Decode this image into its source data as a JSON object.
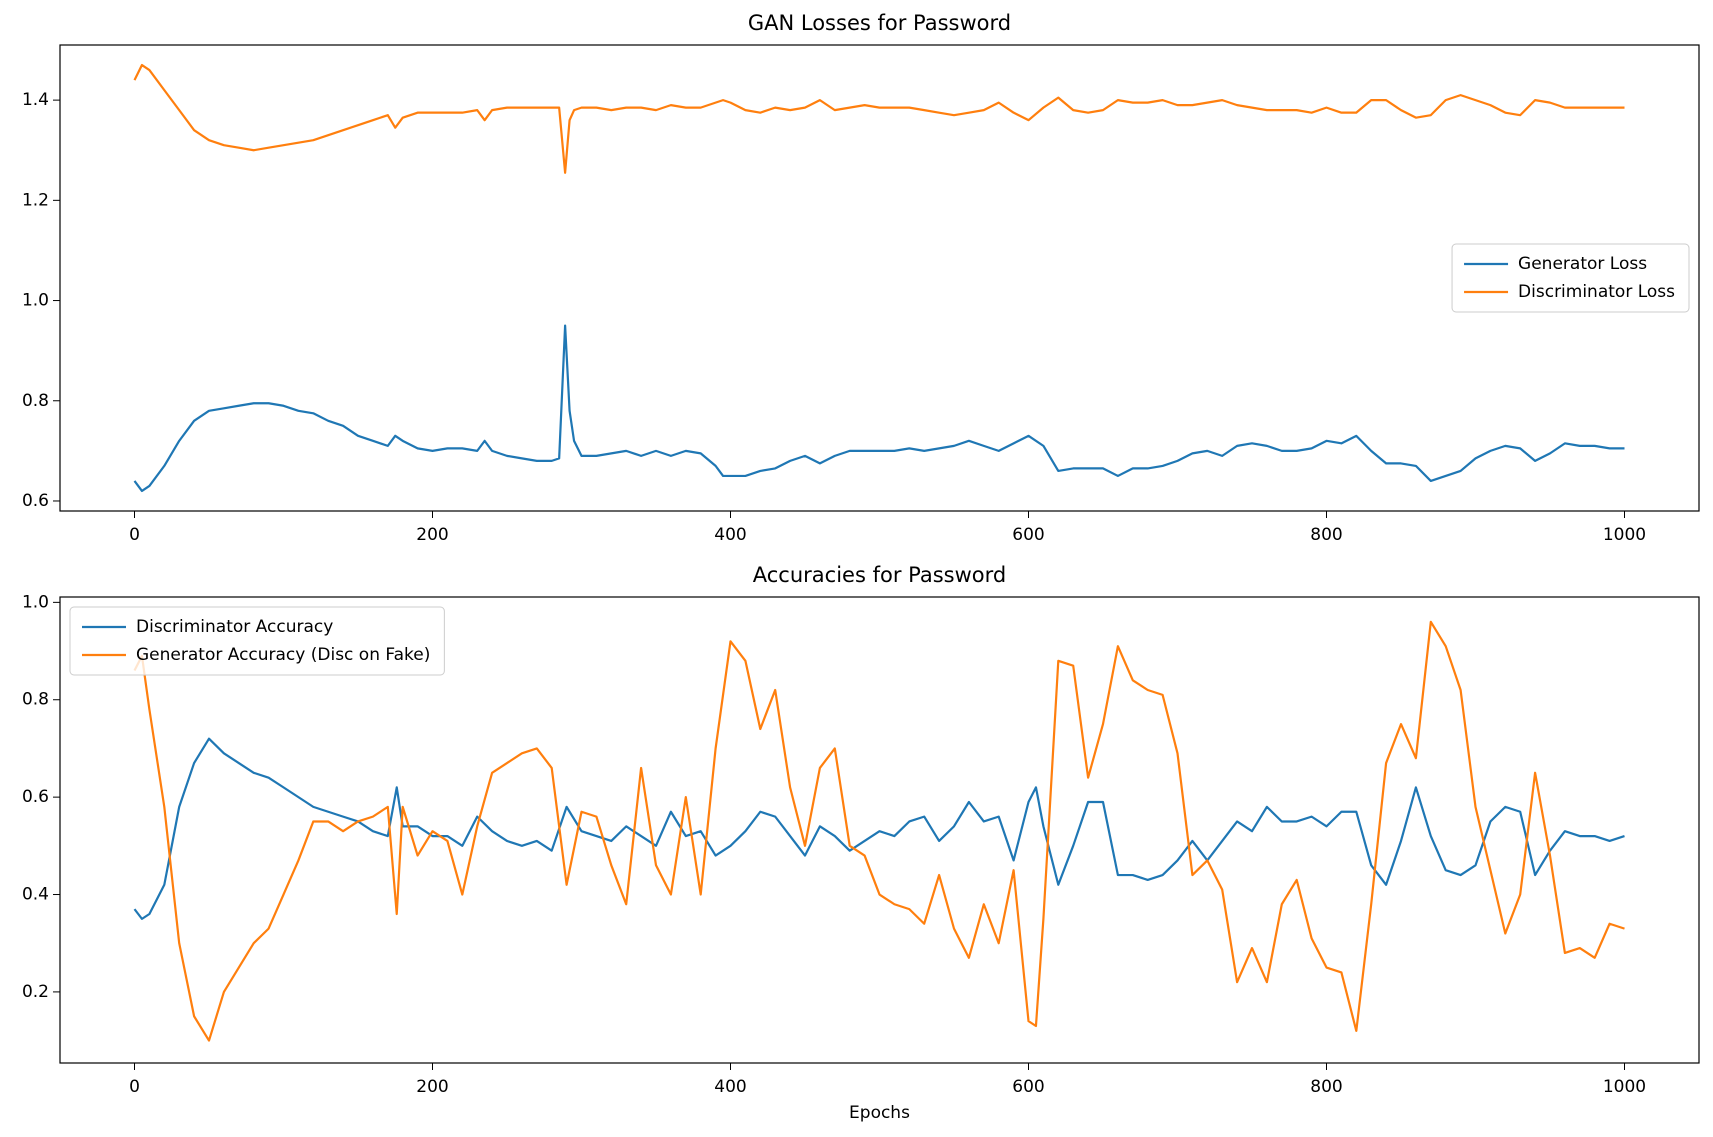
{
  "chart_data": [
    {
      "type": "line",
      "title": "GAN Losses for Password",
      "legend": "center right",
      "x": [
        0,
        5,
        10,
        20,
        30,
        40,
        50,
        60,
        70,
        80,
        90,
        100,
        110,
        120,
        130,
        140,
        150,
        160,
        170,
        175,
        180,
        190,
        200,
        210,
        220,
        230,
        235,
        240,
        250,
        260,
        270,
        280,
        285,
        289,
        292,
        295,
        300,
        310,
        320,
        330,
        340,
        350,
        360,
        370,
        380,
        390,
        395,
        400,
        410,
        420,
        430,
        440,
        450,
        460,
        470,
        480,
        490,
        500,
        510,
        520,
        530,
        540,
        550,
        560,
        570,
        580,
        590,
        600,
        610,
        620,
        630,
        640,
        650,
        660,
        670,
        680,
        690,
        700,
        710,
        720,
        730,
        740,
        750,
        760,
        770,
        780,
        790,
        800,
        810,
        820,
        830,
        840,
        850,
        860,
        870,
        880,
        890,
        900,
        910,
        920,
        930,
        940,
        950,
        960,
        970,
        980,
        990,
        1000
      ],
      "series": [
        {
          "name": "Generator Loss",
          "color": "#1f77b4",
          "values": [
            0.64,
            0.62,
            0.63,
            0.67,
            0.72,
            0.76,
            0.78,
            0.785,
            0.79,
            0.795,
            0.795,
            0.79,
            0.78,
            0.775,
            0.76,
            0.75,
            0.73,
            0.72,
            0.71,
            0.73,
            0.72,
            0.705,
            0.7,
            0.705,
            0.705,
            0.7,
            0.72,
            0.7,
            0.69,
            0.685,
            0.68,
            0.68,
            0.685,
            0.95,
            0.78,
            0.72,
            0.69,
            0.69,
            0.695,
            0.7,
            0.69,
            0.7,
            0.69,
            0.7,
            0.695,
            0.67,
            0.65,
            0.65,
            0.65,
            0.66,
            0.665,
            0.68,
            0.69,
            0.675,
            0.69,
            0.7,
            0.7,
            0.7,
            0.7,
            0.705,
            0.7,
            0.705,
            0.71,
            0.72,
            0.71,
            0.7,
            0.715,
            0.73,
            0.71,
            0.66,
            0.665,
            0.665,
            0.665,
            0.65,
            0.665,
            0.665,
            0.67,
            0.68,
            0.695,
            0.7,
            0.69,
            0.71,
            0.715,
            0.71,
            0.7,
            0.7,
            0.705,
            0.72,
            0.715,
            0.73,
            0.7,
            0.675,
            0.675,
            0.67,
            0.64,
            0.65,
            0.66,
            0.685,
            0.7,
            0.71,
            0.705,
            0.68,
            0.695,
            0.715,
            0.71,
            0.71,
            0.705,
            0.705
          ]
        },
        {
          "name": "Discriminator Loss",
          "color": "#ff7f0e",
          "values": [
            1.44,
            1.47,
            1.46,
            1.42,
            1.38,
            1.34,
            1.32,
            1.31,
            1.305,
            1.3,
            1.305,
            1.31,
            1.315,
            1.32,
            1.33,
            1.34,
            1.35,
            1.36,
            1.37,
            1.345,
            1.365,
            1.375,
            1.375,
            1.375,
            1.375,
            1.38,
            1.36,
            1.38,
            1.385,
            1.385,
            1.385,
            1.385,
            1.385,
            1.255,
            1.36,
            1.38,
            1.385,
            1.385,
            1.38,
            1.385,
            1.385,
            1.38,
            1.39,
            1.385,
            1.385,
            1.395,
            1.4,
            1.395,
            1.38,
            1.375,
            1.385,
            1.38,
            1.385,
            1.4,
            1.38,
            1.385,
            1.39,
            1.385,
            1.385,
            1.385,
            1.38,
            1.375,
            1.37,
            1.375,
            1.38,
            1.395,
            1.375,
            1.36,
            1.385,
            1.405,
            1.38,
            1.375,
            1.38,
            1.4,
            1.395,
            1.395,
            1.4,
            1.39,
            1.39,
            1.395,
            1.4,
            1.39,
            1.385,
            1.38,
            1.38,
            1.38,
            1.375,
            1.385,
            1.375,
            1.375,
            1.4,
            1.4,
            1.38,
            1.365,
            1.37,
            1.4,
            1.41,
            1.4,
            1.39,
            1.375,
            1.37,
            1.4,
            1.395,
            1.385,
            1.385,
            1.385,
            1.385,
            1.385
          ]
        }
      ],
      "xlim": [
        -50,
        1050
      ],
      "ylim": [
        0.58,
        1.51
      ],
      "xticks": [
        0,
        200,
        400,
        600,
        800,
        1000
      ],
      "yticks": [
        0.6,
        0.8,
        {
          "value": 1,
          "label": "1.0"
        },
        1.2,
        1.4
      ]
    },
    {
      "type": "line",
      "title": "Accuracies for Password",
      "xlabel": "Epochs",
      "legend": "upper left",
      "x": [
        0,
        5,
        10,
        20,
        30,
        40,
        50,
        60,
        70,
        80,
        90,
        100,
        110,
        120,
        130,
        140,
        150,
        160,
        170,
        176,
        180,
        190,
        200,
        210,
        220,
        230,
        240,
        250,
        260,
        270,
        280,
        290,
        300,
        310,
        320,
        330,
        340,
        350,
        360,
        370,
        380,
        390,
        400,
        410,
        420,
        430,
        440,
        450,
        460,
        470,
        480,
        490,
        500,
        510,
        520,
        530,
        540,
        550,
        560,
        570,
        580,
        590,
        600,
        605,
        610,
        620,
        630,
        640,
        650,
        660,
        670,
        680,
        690,
        700,
        710,
        720,
        730,
        740,
        750,
        760,
        770,
        780,
        790,
        800,
        810,
        820,
        830,
        840,
        850,
        860,
        870,
        880,
        890,
        900,
        910,
        920,
        930,
        940,
        950,
        960,
        970,
        980,
        990,
        1000
      ],
      "series": [
        {
          "name": "Discriminator Accuracy",
          "color": "#1f77b4",
          "values": [
            0.37,
            0.35,
            0.36,
            0.42,
            0.58,
            0.67,
            0.72,
            0.69,
            0.67,
            0.65,
            0.64,
            0.62,
            0.6,
            0.58,
            0.57,
            0.56,
            0.55,
            0.53,
            0.52,
            0.62,
            0.54,
            0.54,
            0.52,
            0.52,
            0.5,
            0.56,
            0.53,
            0.51,
            0.5,
            0.51,
            0.49,
            0.58,
            0.53,
            0.52,
            0.51,
            0.54,
            0.52,
            0.5,
            0.57,
            0.52,
            0.53,
            0.48,
            0.5,
            0.53,
            0.57,
            0.56,
            0.52,
            0.48,
            0.54,
            0.52,
            0.49,
            0.51,
            0.53,
            0.52,
            0.55,
            0.56,
            0.51,
            0.54,
            0.59,
            0.55,
            0.56,
            0.47,
            0.59,
            0.62,
            0.54,
            0.42,
            0.5,
            0.59,
            0.59,
            0.44,
            0.44,
            0.43,
            0.44,
            0.47,
            0.51,
            0.47,
            0.51,
            0.55,
            0.53,
            0.58,
            0.55,
            0.55,
            0.56,
            0.54,
            0.57,
            0.57,
            0.46,
            0.42,
            0.51,
            0.62,
            0.52,
            0.45,
            0.44,
            0.46,
            0.55,
            0.58,
            0.57,
            0.44,
            0.49,
            0.53,
            0.52,
            0.52,
            0.51,
            0.52
          ]
        },
        {
          "name": "Generator Accuracy (Disc on Fake)",
          "color": "#ff7f0e",
          "values": [
            0.86,
            0.89,
            0.78,
            0.58,
            0.3,
            0.15,
            0.1,
            0.2,
            0.25,
            0.3,
            0.33,
            0.4,
            0.47,
            0.55,
            0.55,
            0.53,
            0.55,
            0.56,
            0.58,
            0.36,
            0.58,
            0.48,
            0.53,
            0.51,
            0.4,
            0.54,
            0.65,
            0.67,
            0.69,
            0.7,
            0.66,
            0.42,
            0.57,
            0.56,
            0.46,
            0.38,
            0.66,
            0.46,
            0.4,
            0.6,
            0.4,
            0.7,
            0.92,
            0.88,
            0.74,
            0.82,
            0.62,
            0.5,
            0.66,
            0.7,
            0.5,
            0.48,
            0.4,
            0.38,
            0.37,
            0.34,
            0.44,
            0.33,
            0.27,
            0.38,
            0.3,
            0.45,
            0.14,
            0.13,
            0.35,
            0.88,
            0.87,
            0.64,
            0.75,
            0.91,
            0.84,
            0.82,
            0.81,
            0.69,
            0.44,
            0.47,
            0.41,
            0.22,
            0.29,
            0.22,
            0.38,
            0.43,
            0.31,
            0.25,
            0.24,
            0.12,
            0.38,
            0.67,
            0.75,
            0.68,
            0.96,
            0.91,
            0.82,
            0.58,
            0.45,
            0.32,
            0.4,
            0.65,
            0.48,
            0.28,
            0.29,
            0.27,
            0.34,
            0.33
          ]
        }
      ],
      "xlim": [
        -50,
        1050
      ],
      "ylim": [
        0.054,
        1.011
      ],
      "xticks": [
        0,
        200,
        400,
        600,
        800,
        1000
      ],
      "yticks": [
        0.2,
        0.4,
        0.6,
        0.8,
        {
          "value": 1,
          "label": "1.0"
        }
      ]
    }
  ]
}
